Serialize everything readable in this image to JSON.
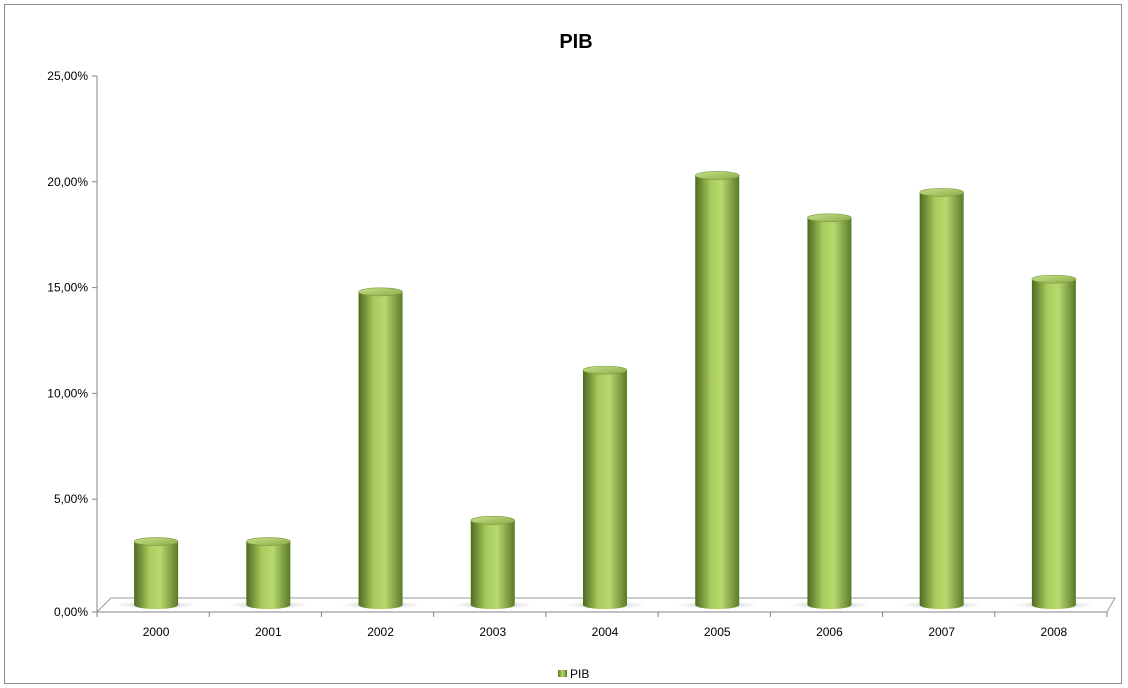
{
  "chart_data": {
    "type": "bar",
    "title": "PIB",
    "categories": [
      "2000",
      "2001",
      "2002",
      "2003",
      "2004",
      "2005",
      "2006",
      "2007",
      "2008"
    ],
    "series": [
      {
        "name": "PIB",
        "values": [
          3.0,
          3.0,
          14.8,
          4.0,
          11.1,
          20.3,
          18.3,
          19.5,
          15.4
        ]
      }
    ],
    "ylim": [
      0,
      25
    ],
    "yticks": [
      0,
      5,
      10,
      15,
      20,
      25
    ],
    "ytick_labels": [
      "0,00%",
      "5,00%",
      "10,00%",
      "15,00%",
      "20,00%",
      "25,00%"
    ],
    "xlabel": "",
    "ylabel": "",
    "grid": false,
    "legend_position": "bottom",
    "bar_color": "#9bbb59",
    "style": "3d-cylinder"
  }
}
